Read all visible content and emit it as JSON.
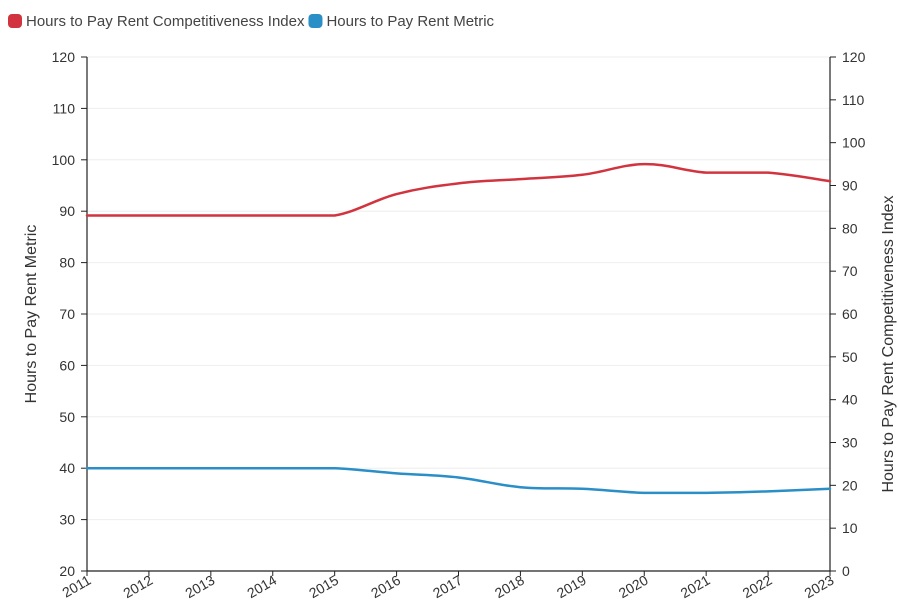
{
  "chart_data": {
    "type": "line",
    "x": [
      "2011",
      "2012",
      "2013",
      "2014",
      "2015",
      "2016",
      "2017",
      "2018",
      "2019",
      "2020",
      "2021",
      "2022",
      "2023"
    ],
    "series": [
      {
        "name": "Hours to Pay Rent Competitiveness Index",
        "axis": "right",
        "color": "#d2343f",
        "values": [
          83,
          83,
          83,
          83,
          83,
          88,
          90.5,
          91.5,
          92.5,
          95,
          93,
          93,
          91
        ]
      },
      {
        "name": "Hours to Pay Rent Metric",
        "axis": "left",
        "color": "#2a8ec7",
        "values": [
          40,
          40,
          40,
          40,
          40,
          39,
          38.2,
          36.3,
          36,
          35.2,
          35.2,
          35.5,
          36
        ]
      }
    ],
    "y_left": {
      "label": "Hours to Pay Rent Metric",
      "range": [
        20,
        120
      ],
      "ticks": [
        "20",
        "30",
        "40",
        "50",
        "60",
        "70",
        "80",
        "90",
        "100",
        "110",
        "120"
      ]
    },
    "y_right": {
      "label": "Hours to Pay Rent Competitiveness Index",
      "range": [
        0,
        120
      ],
      "ticks": [
        "0",
        "10",
        "20",
        "30",
        "40",
        "50",
        "60",
        "70",
        "80",
        "90",
        "100",
        "110",
        "120"
      ]
    },
    "grid": true,
    "legend": "top-left",
    "colors": {
      "axis": "#222222",
      "grid": "#eeeeee"
    }
  }
}
